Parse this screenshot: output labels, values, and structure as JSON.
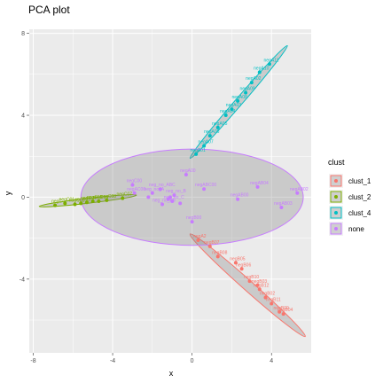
{
  "chart_data": {
    "type": "scatter",
    "title": "PCA plot",
    "xlabel": "x",
    "ylabel": "y",
    "xlim": [
      -8.2,
      6.0
    ],
    "ylim": [
      -7.6,
      8.2
    ],
    "x_ticks": [
      -8,
      -4,
      0,
      4
    ],
    "y_ticks": [
      -4,
      0,
      4,
      8
    ],
    "grid": true,
    "legend_title": "clust",
    "legend_position": "right",
    "colors": {
      "clust_1": "#F8766D",
      "clust_2": "#7CAE00",
      "clust_4": "#00BFC4",
      "none": "#C77CFF",
      "none_fill": "#7F7F7F"
    },
    "series": [
      {
        "name": "clust_1",
        "ellipse": {
          "p1": [
            -0.1,
            -1.8
          ],
          "p2": [
            5.7,
            -6.8
          ],
          "width": 0.25
        },
        "points": [
          {
            "label": "negA2",
            "x": 0.3,
            "y": -2.1
          },
          {
            "label": "negB07",
            "x": 0.9,
            "y": -2.4
          },
          {
            "label": "negB08",
            "x": 1.3,
            "y": -2.9
          },
          {
            "label": "negB05",
            "x": 2.2,
            "y": -3.2
          },
          {
            "label": "negB06",
            "x": 2.5,
            "y": -3.5
          },
          {
            "label": "negB10",
            "x": 2.9,
            "y": -4.1
          },
          {
            "label": "negB03",
            "x": 3.3,
            "y": -4.3
          },
          {
            "label": "negB12",
            "x": 3.4,
            "y": -4.5
          },
          {
            "label": "negB02",
            "x": 3.7,
            "y": -4.9
          },
          {
            "label": "negB11",
            "x": 4.0,
            "y": -5.2
          },
          {
            "label": "negB09",
            "x": 4.4,
            "y": -5.6
          },
          {
            "label": "negB04",
            "x": 4.6,
            "y": -5.7
          }
        ]
      },
      {
        "name": "clust_2",
        "ellipse": {
          "p1": [
            -7.7,
            -0.45
          ],
          "p2": [
            -2.8,
            0.1
          ],
          "width": 0.12
        },
        "points": [
          {
            "label": "negC",
            "x": -6.9,
            "y": -0.4
          },
          {
            "label": "negC01",
            "x": -6.4,
            "y": -0.3
          },
          {
            "label": "negC02",
            "x": -5.9,
            "y": -0.35
          },
          {
            "label": "negC03",
            "x": -5.6,
            "y": -0.3
          },
          {
            "label": "negC04",
            "x": -5.3,
            "y": -0.25
          },
          {
            "label": "negC05",
            "x": -5.0,
            "y": -0.2
          },
          {
            "label": "negC06",
            "x": -4.7,
            "y": -0.2
          },
          {
            "label": "negC08",
            "x": -4.3,
            "y": -0.15
          },
          {
            "label": "negC07",
            "x": -3.5,
            "y": -0.05
          }
        ]
      },
      {
        "name": "clust_4",
        "ellipse": {
          "p1": [
            -0.1,
            1.9
          ],
          "p2": [
            4.8,
            7.4
          ],
          "width": 0.18
        },
        "points": [
          {
            "label": "negA01",
            "x": 0.2,
            "y": 2.1
          },
          {
            "label": "negA07",
            "x": 0.6,
            "y": 2.5
          },
          {
            "label": "negA06",
            "x": 0.9,
            "y": 3.0
          },
          {
            "label": "negA05",
            "x": 1.3,
            "y": 3.4
          },
          {
            "label": "negA04",
            "x": 1.7,
            "y": 4.0
          },
          {
            "label": "negA03",
            "x": 2.0,
            "y": 4.3
          },
          {
            "label": "negA08",
            "x": 2.3,
            "y": 4.7
          },
          {
            "label": "negA09",
            "x": 2.7,
            "y": 5.1
          },
          {
            "label": "negA02",
            "x": 3.0,
            "y": 5.6
          },
          {
            "label": "negA10",
            "x": 3.4,
            "y": 6.1
          },
          {
            "label": "negA11",
            "x": 3.9,
            "y": 6.5
          }
        ]
      },
      {
        "name": "none",
        "ellipse": {
          "p1": [
            -5.6,
            0.0
          ],
          "p2": [
            5.6,
            0.0
          ],
          "width": 2.35,
          "fill_opacity": 0.3
        },
        "points": [
          {
            "label": "negA00",
            "x": -0.3,
            "y": 1.1
          },
          {
            "label": "negC00",
            "x": -3.0,
            "y": 0.6
          },
          {
            "label": "negB00",
            "x": 0.0,
            "y": -1.2
          },
          {
            "label": "negABC00",
            "x": 0.6,
            "y": 0.4
          },
          {
            "label": "negAB00",
            "x": 2.3,
            "y": -0.1
          },
          {
            "label": "negAB04",
            "x": 3.3,
            "y": 0.5
          },
          {
            "label": "negAC00",
            "x": -2.9,
            "y": 0.2
          },
          {
            "label": "neg_no_ABC",
            "x": -1.6,
            "y": 0.4
          },
          {
            "label": "neg_no_A",
            "x": -2.0,
            "y": 0.2
          },
          {
            "label": "neg_no_B",
            "x": -0.9,
            "y": 0.1
          },
          {
            "label": "neg_no_C",
            "x": -1.0,
            "y": -0.2
          },
          {
            "label": "neg_no_AB",
            "x": -1.5,
            "y": -0.35
          },
          {
            "label": "negAB02",
            "x": 5.3,
            "y": 0.2
          },
          {
            "label": "negAB03",
            "x": 4.5,
            "y": -0.5
          }
        ]
      }
    ],
    "extra_points": [
      {
        "series": "none",
        "x": -1.2,
        "y": -0.1
      },
      {
        "series": "none",
        "x": -0.6,
        "y": -0.3
      },
      {
        "series": "none",
        "x": -1.1,
        "y": 0.0
      },
      {
        "series": "none",
        "x": -2.2,
        "y": 0.0
      }
    ]
  }
}
